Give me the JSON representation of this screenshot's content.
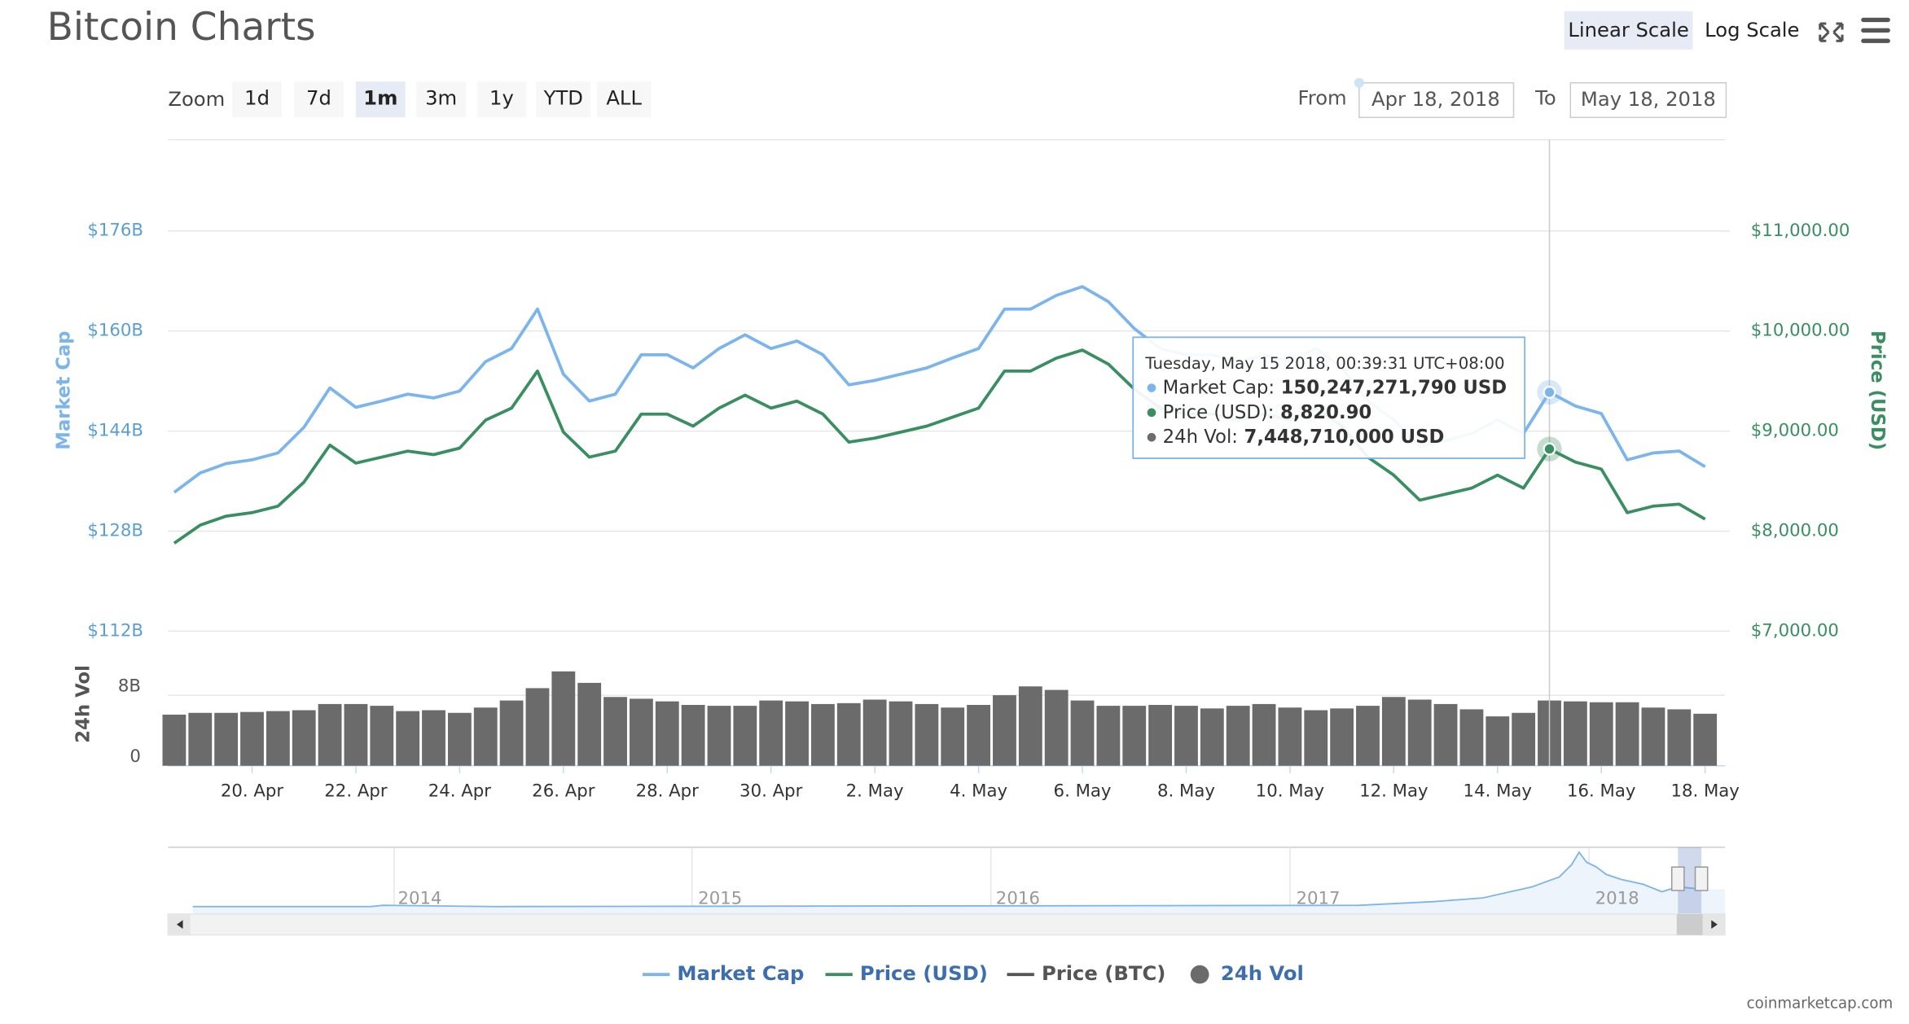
{
  "header": {
    "title": "Bitcoin Charts",
    "scale_buttons": [
      "Linear Scale",
      "Log Scale"
    ],
    "active_scale": 0
  },
  "range_selector": {
    "zoom_label": "Zoom",
    "buttons": [
      "1d",
      "7d",
      "1m",
      "3m",
      "1y",
      "YTD",
      "ALL"
    ],
    "active": 2,
    "from_label": "From",
    "from_value": "Apr 18, 2018",
    "to_label": "To",
    "to_value": "May 18, 2018"
  },
  "chart_data": {
    "type": "line",
    "y_label": "Market Cap",
    "y2_label": "Price (USD)",
    "y3_label": "24h Vol",
    "categories": [
      null,
      null,
      null,
      "20. Apr",
      null,
      null,
      null,
      "22. Apr",
      null,
      null,
      null,
      "24. Apr",
      null,
      null,
      null,
      "26. Apr",
      null,
      null,
      null,
      "28. Apr",
      null,
      null,
      null,
      "30. Apr",
      null,
      null,
      null,
      "2. May",
      null,
      null,
      null,
      "4. May",
      null,
      null,
      null,
      "6. May",
      null,
      null,
      null,
      "8. May",
      null,
      null,
      null,
      "10. May",
      null,
      null,
      null,
      "12. May",
      null,
      null,
      null,
      "14. May",
      null,
      null,
      null,
      "16. May",
      null,
      null,
      null,
      "18. May"
    ],
    "ylim": [
      112,
      190.6
    ],
    "yticks": [
      {
        "value": 112,
        "label": "$112B"
      },
      {
        "value": 128,
        "label": "$128B"
      },
      {
        "value": 144,
        "label": "$144B"
      },
      {
        "value": 160,
        "label": "$160B"
      },
      {
        "value": 176,
        "label": "$176B"
      }
    ],
    "y2lim": [
      7000,
      11913.6
    ],
    "y2ticks": [
      {
        "value": 7000,
        "label": "$7,000.00"
      },
      {
        "value": 8000,
        "label": "$8,000.00"
      },
      {
        "value": 9000,
        "label": "$9,000.00"
      },
      {
        "value": 10000,
        "label": "$10,000.00"
      },
      {
        "value": 11000,
        "label": "$11,000.00"
      }
    ],
    "y3lim": [
      0,
      14
    ],
    "y3ticks": [
      0,
      {
        "value": 8,
        "label": "8B"
      }
    ],
    "grid": true,
    "series": [
      {
        "name": "Market Cap",
        "color": "#7cb5ec",
        "values": [
          134.2,
          137.3,
          138.8,
          139.4,
          140.5,
          144.6,
          150.9,
          147.8,
          148.8,
          149.9,
          149.3,
          150.4,
          155.1,
          157.2,
          163.5,
          153.1,
          148.8,
          149.9,
          156.2,
          156.2,
          154.1,
          157.2,
          159.4,
          157.2,
          158.4,
          156.2,
          151.4,
          152.1,
          153.1,
          154.1,
          155.7,
          157.2,
          163.5,
          163.5,
          165.7,
          167.1,
          164.7,
          160.4,
          157.2,
          156.2,
          156.2,
          155.1,
          156.2,
          155.1,
          157.2,
          154.1,
          148.8,
          145.8,
          141.5,
          142.5,
          143.6,
          145.8,
          143.6,
          150.2,
          148.0,
          146.8,
          139.4,
          140.5,
          140.8,
          138.3
        ]
      },
      {
        "name": "Price (USD)",
        "color": "#3a8f62",
        "axis": "y2",
        "values": [
          7880,
          8060,
          8150,
          8185,
          8250,
          8490,
          8860,
          8680,
          8740,
          8800,
          8765,
          8830,
          9110,
          9230,
          9600,
          8990,
          8740,
          8800,
          9170,
          9170,
          9050,
          9230,
          9360,
          9230,
          9300,
          9170,
          8890,
          8930,
          8990,
          9050,
          9140,
          9230,
          9600,
          9600,
          9730,
          9810,
          9670,
          9420,
          9230,
          9170,
          9170,
          9110,
          9170,
          9110,
          9230,
          9050,
          8740,
          8560,
          8310,
          8370,
          8430,
          8560,
          8430,
          8821,
          8690,
          8620,
          8185,
          8250,
          8270,
          8120
        ]
      },
      {
        "name": "Price (BTC)",
        "color": "#555555",
        "visible": false
      },
      {
        "name": "24h Vol",
        "color": "#6b6b6b",
        "axis": "y3",
        "type": "column",
        "values": [
          5.8,
          6.0,
          6.0,
          6.1,
          6.2,
          6.3,
          7.0,
          7.0,
          6.8,
          6.2,
          6.3,
          6.0,
          6.6,
          7.4,
          8.8,
          10.7,
          9.4,
          7.8,
          7.6,
          7.3,
          6.9,
          6.8,
          6.8,
          7.4,
          7.3,
          7.0,
          7.1,
          7.5,
          7.3,
          7.0,
          6.6,
          6.9,
          8.0,
          9.0,
          8.6,
          7.4,
          6.8,
          6.8,
          6.9,
          6.8,
          6.5,
          6.8,
          7.0,
          6.6,
          6.3,
          6.5,
          6.8,
          7.8,
          7.5,
          7.0,
          6.4,
          5.6,
          6.0,
          7.4,
          7.3,
          7.2,
          7.2,
          6.6,
          6.4,
          5.9
        ]
      }
    ],
    "tooltip": {
      "index": 53,
      "title": "Tuesday, May 15 2018, 00:39:31 UTC+08:00",
      "rows": [
        {
          "series": 0,
          "label": "Market Cap:",
          "value": "150,247,271,790 USD"
        },
        {
          "series": 1,
          "label": "Price (USD):",
          "value": "8,820.90"
        },
        {
          "series": 3,
          "label": "24h Vol:",
          "value": "7,448,710,000 USD"
        }
      ]
    }
  },
  "navigator": {
    "years": [
      "2014",
      "2015",
      "2016",
      "2017",
      "2018"
    ]
  },
  "credit": "coinmarketcap.com"
}
